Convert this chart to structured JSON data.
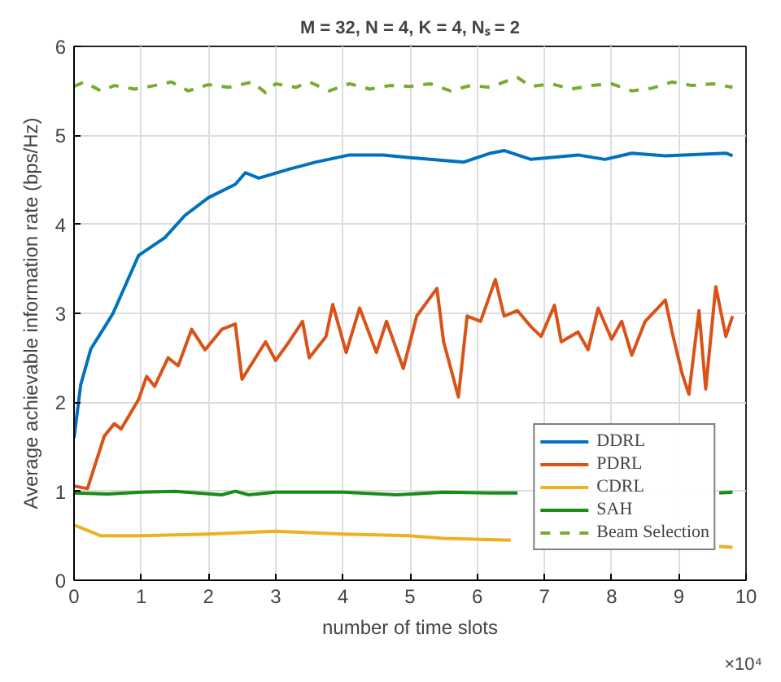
{
  "chart_data": {
    "type": "line",
    "title": "M = 32, N = 4, K = 4, Nₛ = 2",
    "xlabel": "number of time slots",
    "ylabel": "Average achievable information rate (bps/Hz)",
    "annotations": [
      "×10⁴"
    ],
    "xlim": [
      0,
      10
    ],
    "xticks": [
      0,
      1,
      2,
      3,
      4,
      5,
      6,
      7,
      8,
      9,
      10
    ],
    "ylim": [
      0,
      6
    ],
    "yticks": [
      0,
      1,
      2,
      3,
      4,
      5,
      6
    ],
    "grid": true,
    "legend": "bottom right",
    "series": [
      {
        "name": "DDRL",
        "color": "#0072bd",
        "x": [
          0,
          0.1,
          0.25,
          0.5,
          0.58,
          0.96,
          1.35,
          1.65,
          2.0,
          2.4,
          2.55,
          2.75,
          3.2,
          3.6,
          4.1,
          4.6,
          5.0,
          5.8,
          6.2,
          6.4,
          6.8,
          7.5,
          7.9,
          8.3,
          8.8,
          9.7,
          9.8
        ],
        "values": [
          1.6,
          2.2,
          2.6,
          2.9,
          3.0,
          3.65,
          3.85,
          4.1,
          4.3,
          4.45,
          4.58,
          4.52,
          4.62,
          4.7,
          4.78,
          4.78,
          4.75,
          4.7,
          4.8,
          4.83,
          4.73,
          4.78,
          4.73,
          4.8,
          4.77,
          4.8,
          4.77
        ]
      },
      {
        "name": "PDRL",
        "color": "#d95319",
        "x": [
          0,
          0.2,
          0.45,
          0.6,
          0.7,
          0.96,
          1.08,
          1.2,
          1.4,
          1.55,
          1.75,
          1.95,
          2.2,
          2.4,
          2.5,
          2.65,
          2.85,
          3.0,
          3.2,
          3.4,
          3.5,
          3.75,
          3.85,
          4.05,
          4.25,
          4.5,
          4.65,
          4.9,
          5.1,
          5.4,
          5.5,
          5.65,
          5.72,
          5.85,
          6.05,
          6.27,
          6.4,
          6.6,
          6.8,
          6.95,
          7.15,
          7.25,
          7.5,
          7.65,
          7.8,
          8.0,
          8.15,
          8.3,
          8.5,
          8.8,
          8.9,
          9.05,
          9.15,
          9.3,
          9.4,
          9.55,
          9.7,
          9.8
        ],
        "values": [
          1.06,
          1.03,
          1.62,
          1.76,
          1.7,
          2.03,
          2.29,
          2.18,
          2.5,
          2.41,
          2.82,
          2.59,
          2.82,
          2.88,
          2.26,
          2.44,
          2.68,
          2.47,
          2.68,
          2.91,
          2.5,
          2.74,
          3.1,
          2.56,
          3.06,
          2.56,
          2.91,
          2.38,
          2.97,
          3.28,
          2.68,
          2.26,
          2.06,
          2.97,
          2.91,
          3.38,
          2.97,
          3.03,
          2.85,
          2.74,
          3.09,
          2.68,
          2.79,
          2.59,
          3.06,
          2.71,
          2.91,
          2.53,
          2.91,
          3.15,
          2.79,
          2.32,
          2.09,
          3.03,
          2.15,
          3.3,
          2.74,
          2.97
        ]
      },
      {
        "name": "CDRL",
        "color": "#edb120",
        "x": [
          0,
          0.4,
          1.0,
          2.0,
          3.0,
          4.0,
          5.0,
          5.5,
          6.5,
          6.6,
          9.4,
          9.6,
          9.8
        ],
        "values": [
          0.62,
          0.5,
          0.5,
          0.52,
          0.55,
          0.52,
          0.5,
          0.47,
          0.45,
          null,
          null,
          0.38,
          0.37
        ]
      },
      {
        "name": "SAH",
        "color": "#1a8c1a",
        "x": [
          0,
          0.5,
          1.0,
          1.5,
          2.2,
          2.4,
          2.6,
          3.0,
          4.0,
          4.8,
          5.5,
          6.2,
          6.6,
          6.7,
          9.4,
          9.6,
          9.8
        ],
        "values": [
          0.98,
          0.97,
          0.99,
          1.0,
          0.96,
          1.0,
          0.96,
          0.99,
          0.99,
          0.96,
          0.99,
          0.98,
          0.98,
          null,
          null,
          0.98,
          0.99
        ]
      },
      {
        "name": "Beam Selection",
        "color": "#77ac30",
        "line_style": "dashed",
        "x": [
          0,
          0.15,
          0.4,
          0.6,
          0.9,
          1.2,
          1.45,
          1.7,
          2.0,
          2.3,
          2.65,
          2.85,
          3.0,
          3.3,
          3.5,
          3.8,
          4.1,
          4.4,
          4.7,
          5.0,
          5.3,
          5.6,
          5.9,
          6.2,
          6.4,
          6.6,
          6.8,
          7.1,
          7.4,
          7.7,
          8.0,
          8.3,
          8.6,
          8.9,
          9.2,
          9.5,
          9.8
        ],
        "values": [
          5.55,
          5.6,
          5.5,
          5.56,
          5.52,
          5.56,
          5.6,
          5.5,
          5.57,
          5.54,
          5.6,
          5.48,
          5.58,
          5.54,
          5.6,
          5.5,
          5.58,
          5.52,
          5.56,
          5.55,
          5.58,
          5.5,
          5.56,
          5.54,
          5.6,
          5.65,
          5.55,
          5.58,
          5.52,
          5.56,
          5.58,
          5.5,
          5.53,
          5.6,
          5.56,
          5.58,
          5.54
        ]
      }
    ]
  }
}
